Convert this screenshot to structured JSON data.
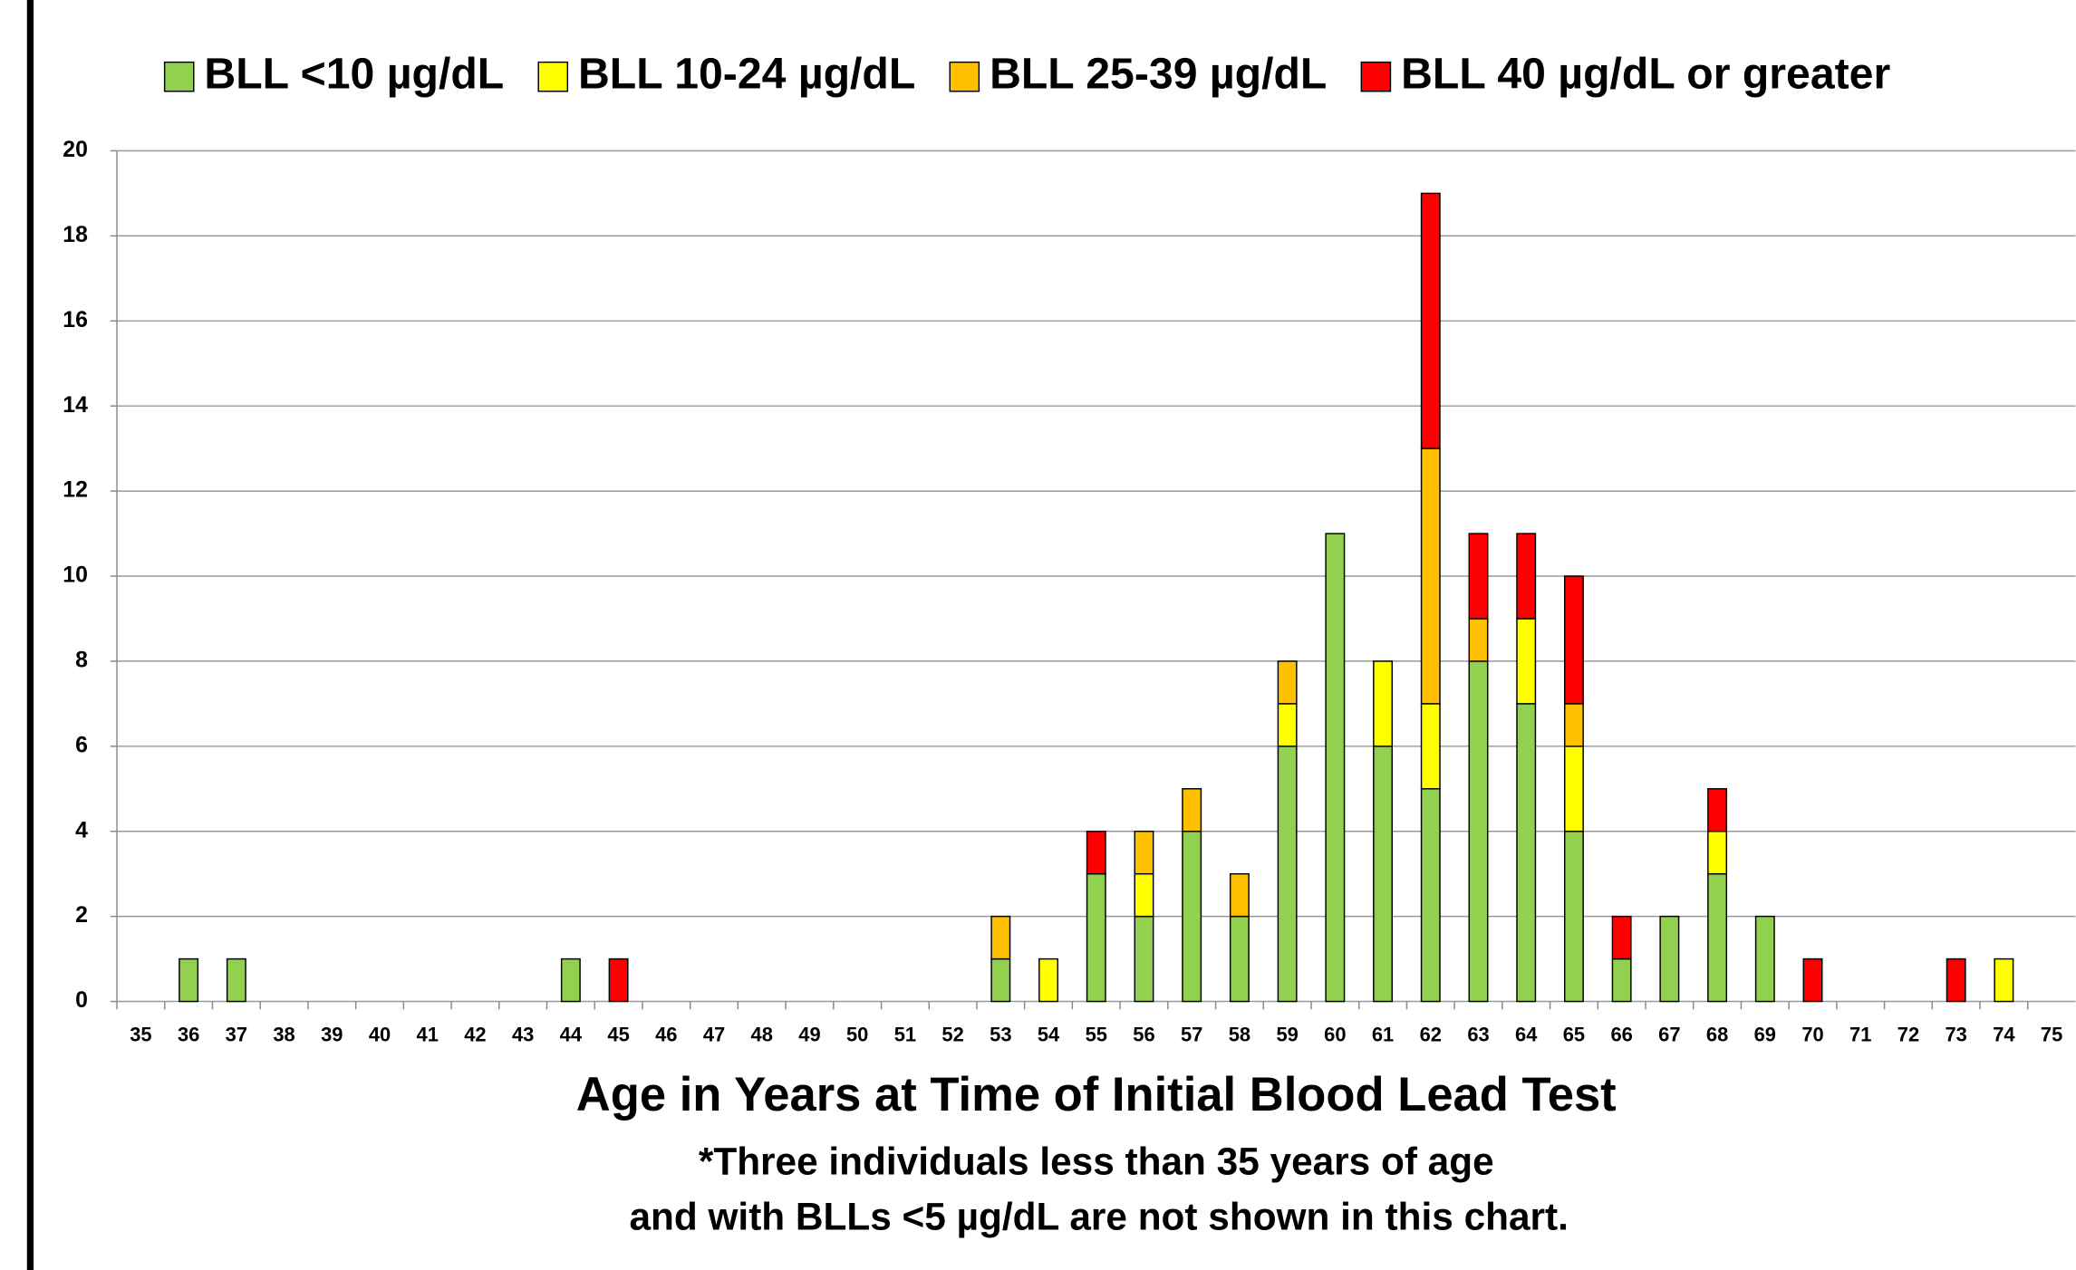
{
  "chart_data": {
    "type": "bar",
    "stacked": true,
    "x_label": "Age in Years at Time of Initial Blood Lead Test",
    "annotations": [
      "*Three individuals less than 35 years of age",
      "and with BLLs <5 µg/dL are not shown in this chart."
    ],
    "categories": [
      "35",
      "36",
      "37",
      "38",
      "39",
      "40",
      "41",
      "42",
      "43",
      "44",
      "45",
      "46",
      "47",
      "48",
      "49",
      "50",
      "51",
      "52",
      "53",
      "54",
      "55",
      "56",
      "57",
      "58",
      "59",
      "60",
      "61",
      "62",
      "63",
      "64",
      "65",
      "66",
      "67",
      "68",
      "69",
      "70",
      "71",
      "72",
      "73",
      "74",
      "75"
    ],
    "series": [
      {
        "name": "BLL <10 µg/dL",
        "color": "#92d050",
        "values": [
          0,
          1,
          1,
          0,
          0,
          0,
          0,
          0,
          0,
          1,
          0,
          0,
          0,
          0,
          0,
          0,
          0,
          0,
          1,
          0,
          3,
          2,
          4,
          2,
          6,
          11,
          6,
          5,
          8,
          7,
          4,
          1,
          2,
          3,
          2,
          0,
          0,
          0,
          0,
          0,
          0
        ]
      },
      {
        "name": "BLL 10-24 µg/dL",
        "color": "#ffff00",
        "values": [
          0,
          0,
          0,
          0,
          0,
          0,
          0,
          0,
          0,
          0,
          0,
          0,
          0,
          0,
          0,
          0,
          0,
          0,
          0,
          1,
          0,
          1,
          0,
          0,
          1,
          0,
          2,
          2,
          0,
          2,
          2,
          0,
          0,
          1,
          0,
          0,
          0,
          0,
          0,
          1,
          0
        ]
      },
      {
        "name": "BLL 25-39 µg/dL",
        "color": "#ffc000",
        "values": [
          0,
          0,
          0,
          0,
          0,
          0,
          0,
          0,
          0,
          0,
          0,
          0,
          0,
          0,
          0,
          0,
          0,
          0,
          1,
          0,
          0,
          1,
          1,
          1,
          1,
          0,
          0,
          6,
          1,
          0,
          1,
          0,
          0,
          0,
          0,
          0,
          0,
          0,
          0,
          0,
          0
        ]
      },
      {
        "name": "BLL 40  µg/dL or greater",
        "color": "#ff0000",
        "values": [
          0,
          0,
          0,
          0,
          0,
          0,
          0,
          0,
          0,
          0,
          1,
          0,
          0,
          0,
          0,
          0,
          0,
          0,
          0,
          0,
          1,
          0,
          0,
          0,
          0,
          0,
          0,
          6,
          2,
          2,
          3,
          1,
          0,
          1,
          0,
          1,
          0,
          0,
          1,
          0,
          0
        ]
      }
    ],
    "ylim": [
      0,
      20
    ],
    "yticks": [
      0,
      2,
      4,
      6,
      8,
      10,
      12,
      14,
      16,
      18,
      20
    ],
    "grid": true,
    "legend": "top"
  }
}
